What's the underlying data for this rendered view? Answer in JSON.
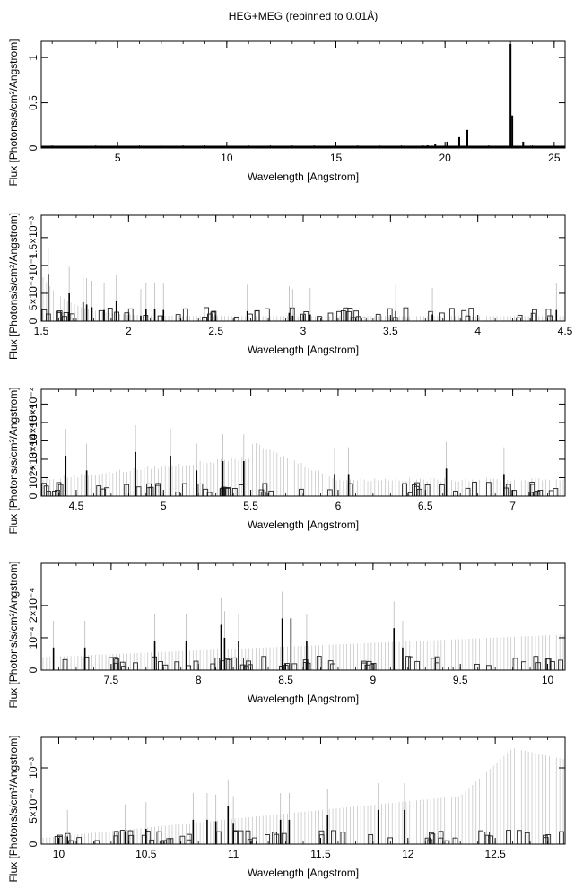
{
  "chart_data": {
    "title": "HEG+MEG (rebinned to 0.01Å)",
    "panels": [
      {
        "type": "histogram",
        "xlabel": "Wavelength [Angstrom]",
        "ylabel": "Flux [Photons/s/cm²/Angstrom]",
        "xlim": [
          1.5,
          25.5
        ],
        "ylim": [
          0,
          1.18
        ],
        "xticks": [
          5,
          10,
          15,
          20,
          25
        ],
        "yticks": [
          {
            "v": 0,
            "label": "0"
          },
          {
            "v": 0.5,
            "label": "0.5"
          },
          {
            "v": 1,
            "label": "1"
          }
        ],
        "lines": [
          {
            "x": 18.63,
            "y": 0.01
          },
          {
            "x": 18.97,
            "y": 0.02
          },
          {
            "x": 19.2,
            "y": 0.03
          },
          {
            "x": 19.55,
            "y": 0.04
          },
          {
            "x": 20.1,
            "y": 0.07
          },
          {
            "x": 20.65,
            "y": 0.12
          },
          {
            "x": 21.02,
            "y": 0.2
          },
          {
            "x": 22.1,
            "y": 0.015
          },
          {
            "x": 22.7,
            "y": 0.02
          },
          {
            "x": 23.0,
            "y": 1.15
          },
          {
            "x": 23.08,
            "y": 0.36
          },
          {
            "x": 23.58,
            "y": 0.07
          },
          {
            "x": 24.2,
            "y": 0.01
          },
          {
            "x": 24.8,
            "y": 0.01
          }
        ]
      },
      {
        "type": "histogram",
        "xlabel": "Wavelength [Angstrom]",
        "ylabel": "Flux [Photons/s/cm²/Angstrom]",
        "xlim": [
          1.5,
          4.5
        ],
        "ylim": [
          0,
          0.0019
        ],
        "xticks": [
          1.5,
          2,
          2.5,
          3,
          3.5,
          4,
          4.5
        ],
        "yticks": [
          {
            "v": 0,
            "label": "0"
          },
          {
            "v": 0.0005,
            "label": "5×10⁻⁴"
          },
          {
            "v": 0.001,
            "label": "10⁻³"
          },
          {
            "v": 0.0015,
            "label": "1.5×10⁻³"
          }
        ],
        "lines": [
          {
            "x": 1.54,
            "y": 0.00085
          },
          {
            "x": 1.66,
            "y": 0.0005
          },
          {
            "x": 1.74,
            "y": 0.00034
          },
          {
            "x": 1.76,
            "y": 0.0003
          },
          {
            "x": 1.79,
            "y": 0.00025
          },
          {
            "x": 1.86,
            "y": 0.0002
          },
          {
            "x": 1.93,
            "y": 0.00036
          },
          {
            "x": 2.07,
            "y": 0.0001
          },
          {
            "x": 2.1,
            "y": 0.00022
          },
          {
            "x": 2.15,
            "y": 0.00022
          },
          {
            "x": 2.2,
            "y": 0.0002
          },
          {
            "x": 2.68,
            "y": 0.00018
          },
          {
            "x": 2.92,
            "y": 0.00015
          },
          {
            "x": 2.94,
            "y": 0.0001
          },
          {
            "x": 3.04,
            "y": 0.00012
          },
          {
            "x": 3.53,
            "y": 0.00018
          },
          {
            "x": 3.74,
            "y": 0.00012
          },
          {
            "x": 4.45,
            "y": 0.0002
          }
        ]
      },
      {
        "type": "histogram",
        "xlabel": "Wavelength [Angstrom]",
        "ylabel": "Flux [Photons/s/cm²/Angstrom]",
        "xlim": [
          4.3,
          7.3
        ],
        "ylim": [
          0,
          0.00058
        ],
        "xticks": [
          4.5,
          5,
          5.5,
          6,
          6.5,
          7
        ],
        "yticks": [
          {
            "v": 0,
            "label": "0"
          },
          {
            "v": 0.0001,
            "label": "10⁻⁴"
          },
          {
            "v": 0.0002,
            "label": "2×10⁻⁴"
          },
          {
            "v": 0.0003,
            "label": "3×10⁻⁴"
          },
          {
            "v": 0.0004,
            "label": "4×10⁻⁴"
          },
          {
            "v": 0.0005,
            "label": "5×10⁻⁴"
          }
        ],
        "lines": [
          {
            "x": 4.44,
            "y": 0.00022
          },
          {
            "x": 4.56,
            "y": 0.00014
          },
          {
            "x": 4.84,
            "y": 0.00024
          },
          {
            "x": 5.04,
            "y": 0.00022
          },
          {
            "x": 5.19,
            "y": 0.00014
          },
          {
            "x": 5.34,
            "y": 0.00019
          },
          {
            "x": 5.46,
            "y": 0.00019
          },
          {
            "x": 5.98,
            "y": 0.00012
          },
          {
            "x": 6.06,
            "y": 0.00012
          },
          {
            "x": 6.62,
            "y": 0.00015
          },
          {
            "x": 6.95,
            "y": 0.00012
          }
        ]
      },
      {
        "type": "histogram",
        "xlabel": "Wavelength [Angstrom]",
        "ylabel": "Flux [Photons/s/cm²/Angstrom]",
        "xlim": [
          7.1,
          10.1
        ],
        "ylim": [
          0,
          0.00033
        ],
        "xticks": [
          7.5,
          8,
          8.5,
          9,
          9.5,
          10
        ],
        "yticks": [
          {
            "v": 0,
            "label": "0"
          },
          {
            "v": 0.0001,
            "label": "10⁻⁴"
          },
          {
            "v": 0.0002,
            "label": "2×10⁻⁴"
          }
        ],
        "lines": [
          {
            "x": 7.17,
            "y": 7e-05
          },
          {
            "x": 7.35,
            "y": 7e-05
          },
          {
            "x": 7.75,
            "y": 9e-05
          },
          {
            "x": 7.93,
            "y": 9e-05
          },
          {
            "x": 8.13,
            "y": 0.00014
          },
          {
            "x": 8.15,
            "y": 0.0001
          },
          {
            "x": 8.23,
            "y": 9e-05
          },
          {
            "x": 8.48,
            "y": 0.00016
          },
          {
            "x": 8.53,
            "y": 0.00016
          },
          {
            "x": 8.62,
            "y": 9e-05
          },
          {
            "x": 9.12,
            "y": 0.00013
          },
          {
            "x": 9.17,
            "y": 7e-05
          }
        ]
      },
      {
        "type": "histogram",
        "xlabel": "Wavelength [Angstrom]",
        "ylabel": "Flux [Photons/s/cm²/Angstrom]",
        "xlim": [
          9.9,
          12.9
        ],
        "ylim": [
          0,
          0.0014
        ],
        "xticks": [
          10,
          10.5,
          11,
          11.5,
          12,
          12.5
        ],
        "yticks": [
          {
            "v": 0,
            "label": "0"
          },
          {
            "v": 0.0005,
            "label": "5×10⁻⁴"
          },
          {
            "v": 0.001,
            "label": "10⁻³"
          }
        ],
        "lines": [
          {
            "x": 10.05,
            "y": 0.0001
          },
          {
            "x": 10.38,
            "y": 0.00017
          },
          {
            "x": 10.5,
            "y": 0.0002
          },
          {
            "x": 10.77,
            "y": 0.00032
          },
          {
            "x": 10.85,
            "y": 0.00032
          },
          {
            "x": 10.9,
            "y": 0.0003
          },
          {
            "x": 10.97,
            "y": 0.0005
          },
          {
            "x": 11.0,
            "y": 0.00028
          },
          {
            "x": 11.27,
            "y": 0.00032
          },
          {
            "x": 11.32,
            "y": 0.00032
          },
          {
            "x": 11.54,
            "y": 0.00038
          },
          {
            "x": 11.83,
            "y": 0.00045
          },
          {
            "x": 11.98,
            "y": 0.00045
          }
        ]
      }
    ]
  }
}
